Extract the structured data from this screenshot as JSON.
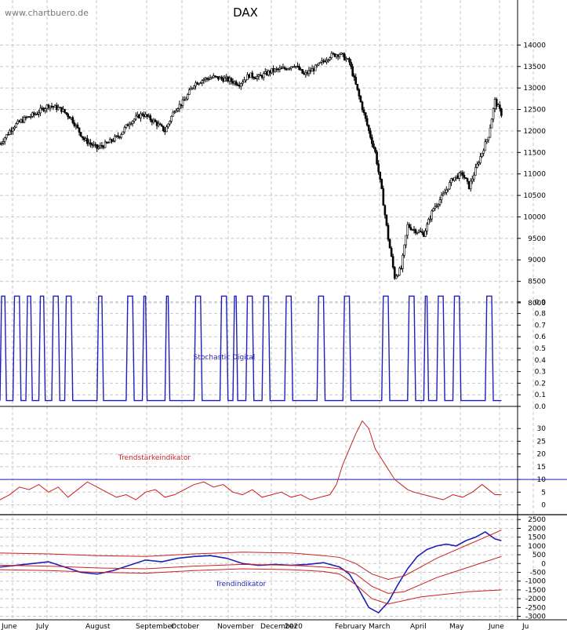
{
  "watermark": "www.chartbuero.de",
  "chart_data": [
    {
      "type": "line",
      "title": "DAX",
      "ylim": [
        8000,
        14500
      ],
      "yticks": [
        8000,
        8500,
        9000,
        9500,
        10000,
        10500,
        11000,
        11500,
        12000,
        12500,
        13000,
        13500,
        14000
      ],
      "x_labels": [
        "June",
        "July",
        "August",
        "September",
        "October",
        "November",
        "December",
        "2020",
        "February",
        "March",
        "April",
        "May",
        "June",
        "Ju"
      ],
      "price_series": {
        "name": "",
        "x_index": [
          0,
          8,
          16,
          22,
          30,
          38,
          44,
          52,
          60,
          66,
          74,
          80,
          88,
          96,
          102,
          108,
          114,
          120,
          126,
          132,
          140,
          148,
          154,
          160,
          168,
          176,
          182,
          188,
          196,
          204,
          210,
          216,
          222,
          228,
          232,
          236,
          240,
          244,
          248,
          252,
          256,
          262,
          268,
          274,
          280,
          286,
          290,
          294,
          298,
          302,
          306,
          310
        ],
        "values": [
          11700,
          12100,
          12300,
          12400,
          12600,
          12500,
          12300,
          11800,
          11600,
          11700,
          11900,
          12200,
          12400,
          12200,
          12000,
          12500,
          12700,
          13100,
          13200,
          13250,
          13200,
          13100,
          13300,
          13250,
          13400,
          13450,
          13550,
          13300,
          13500,
          13750,
          13800,
          13600,
          12800,
          12000,
          11500,
          10600,
          9500,
          8600,
          8800,
          9800,
          9700,
          9600,
          10200,
          10500,
          10900,
          11000,
          10700,
          11100,
          11500,
          11900,
          12700,
          12400
        ]
      }
    },
    {
      "type": "line",
      "title": "Stochastic Digital",
      "ylim": [
        0,
        1
      ],
      "yticks": [
        0.0,
        0.1,
        0.2,
        0.3,
        0.4,
        0.5,
        0.6,
        0.7,
        0.8,
        0.9
      ],
      "levels": [
        0.05,
        0.95
      ],
      "switch_index": [
        0,
        3,
        8,
        12,
        16,
        19,
        24,
        27,
        32,
        36,
        40,
        44,
        60,
        63,
        78,
        82,
        88,
        90,
        102,
        104,
        120,
        124,
        136,
        140,
        144,
        146,
        152,
        156,
        162,
        166,
        176,
        180,
        196,
        200,
        212,
        216,
        236,
        240,
        252,
        256,
        262,
        264,
        270,
        274,
        280,
        284,
        300,
        304
      ],
      "start_state": 0
    },
    {
      "type": "line",
      "title": "Trendstärkeindikator",
      "ylim": [
        -2,
        35
      ],
      "yticks": [
        0,
        5,
        10,
        15,
        20,
        25,
        30
      ],
      "threshold": 10,
      "series": [
        {
          "name": "",
          "x_index": [
            0,
            6,
            12,
            18,
            24,
            30,
            36,
            42,
            48,
            54,
            60,
            66,
            72,
            78,
            84,
            90,
            96,
            102,
            108,
            114,
            120,
            126,
            132,
            138,
            144,
            150,
            156,
            162,
            168,
            174,
            180,
            186,
            192,
            198,
            204,
            208,
            212,
            216,
            220,
            224,
            228,
            232,
            236,
            240,
            244,
            248,
            252,
            256,
            262,
            268,
            274,
            280,
            286,
            292,
            298,
            302,
            306,
            310
          ],
          "values": [
            2,
            4,
            7,
            6,
            8,
            5,
            7,
            3,
            6,
            9,
            7,
            5,
            3,
            4,
            2,
            5,
            6,
            3,
            4,
            6,
            8,
            9,
            7,
            8,
            5,
            4,
            6,
            3,
            4,
            5,
            3,
            4,
            2,
            3,
            4,
            8,
            16,
            22,
            28,
            33,
            30,
            22,
            18,
            14,
            10,
            8,
            6,
            5,
            4,
            3,
            2,
            4,
            3,
            5,
            8,
            6,
            4,
            4
          ]
        }
      ]
    },
    {
      "type": "line",
      "title": "Trendindikator",
      "ylim": [
        -3200,
        2600
      ],
      "yticks": [
        -3000,
        -2500,
        -2000,
        -1500,
        -1000,
        -500,
        0,
        500,
        1000,
        1500,
        2000,
        2500
      ],
      "series": [
        {
          "name": "",
          "x_index": [
            0,
            10,
            20,
            30,
            40,
            50,
            60,
            70,
            80,
            90,
            100,
            110,
            120,
            130,
            140,
            150,
            160,
            170,
            180,
            190,
            200,
            210,
            216,
            222,
            228,
            234,
            240,
            246,
            252,
            258,
            264,
            270,
            276,
            282,
            288,
            294,
            300,
            306,
            310
          ],
          "values": [
            -200,
            -100,
            0,
            100,
            -200,
            -500,
            -600,
            -400,
            -100,
            200,
            100,
            300,
            400,
            450,
            300,
            0,
            -100,
            -50,
            -100,
            -50,
            50,
            -200,
            -600,
            -1500,
            -2500,
            -2800,
            -2200,
            -1200,
            -300,
            400,
            800,
            1000,
            1100,
            1000,
            1300,
            1500,
            1800,
            1400,
            1300
          ]
        },
        {
          "name": "",
          "x_index": [
            0,
            30,
            60,
            90,
            120,
            150,
            180,
            200,
            210,
            220,
            230,
            240,
            250,
            260,
            270,
            280,
            290,
            300,
            310
          ],
          "values": [
            600,
            550,
            450,
            400,
            550,
            650,
            600,
            450,
            350,
            0,
            -600,
            -900,
            -700,
            -200,
            300,
            700,
            1100,
            1500,
            1900
          ]
        },
        {
          "name": "",
          "x_index": [
            0,
            30,
            60,
            90,
            120,
            150,
            180,
            200,
            210,
            220,
            230,
            240,
            250,
            260,
            270,
            280,
            290,
            300,
            310
          ],
          "values": [
            -100,
            -150,
            -250,
            -300,
            -150,
            -50,
            -100,
            -200,
            -300,
            -600,
            -1300,
            -1700,
            -1600,
            -1200,
            -800,
            -500,
            -200,
            100,
            400
          ]
        },
        {
          "name": "",
          "x_index": [
            0,
            30,
            60,
            90,
            120,
            150,
            180,
            200,
            210,
            220,
            230,
            240,
            250,
            260,
            270,
            280,
            290,
            300,
            310
          ],
          "values": [
            -350,
            -400,
            -500,
            -550,
            -400,
            -300,
            -350,
            -450,
            -600,
            -1200,
            -2000,
            -2300,
            -2100,
            -1900,
            -1800,
            -1700,
            -1600,
            -1550,
            -1500
          ]
        }
      ]
    }
  ]
}
